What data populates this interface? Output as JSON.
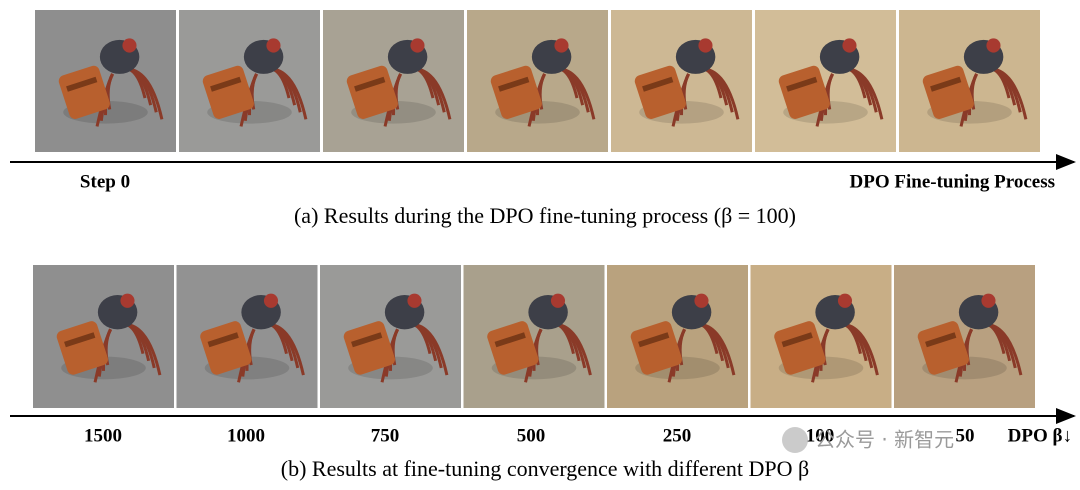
{
  "panels": [
    {
      "start_label": "Step 0",
      "end_label": "DPO Fine-tuning Process",
      "caption": "(a) Results during the DPO fine-tuning process (β = 100)"
    },
    {
      "labels": [
        "1500",
        "1000",
        "750",
        "500",
        "250",
        "100",
        "50"
      ],
      "end_label": "DPO β↓",
      "caption": "(b) Results at fine-tuning convergence with different DPO β"
    }
  ],
  "watermark": "公众号 · 新智元"
}
